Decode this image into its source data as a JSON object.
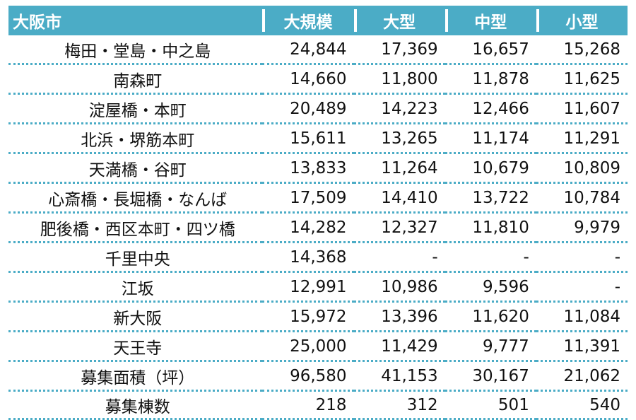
{
  "header": {
    "city": "大阪市",
    "columns": [
      "大規模",
      "大型",
      "中型",
      "小型"
    ]
  },
  "rows": [
    {
      "name": "梅田・堂島・中之島",
      "values": [
        "24,844",
        "17,369",
        "16,657",
        "15,268"
      ]
    },
    {
      "name": "南森町",
      "values": [
        "14,660",
        "11,800",
        "11,878",
        "11,625"
      ]
    },
    {
      "name": "淀屋橋・本町",
      "values": [
        "20,489",
        "14,223",
        "12,466",
        "11,607"
      ]
    },
    {
      "name": "北浜・堺筋本町",
      "values": [
        "15,611",
        "13,265",
        "11,174",
        "11,291"
      ]
    },
    {
      "name": "天満橋・谷町",
      "values": [
        "13,833",
        "11,264",
        "10,679",
        "10,809"
      ]
    },
    {
      "name": "心斎橋・長堀橋・なんば",
      "values": [
        "17,509",
        "14,410",
        "13,722",
        "10,784"
      ]
    },
    {
      "name": "肥後橋・西区本町・四ツ橋",
      "values": [
        "14,282",
        "12,327",
        "11,810",
        "9,979"
      ]
    },
    {
      "name": "千里中央",
      "values": [
        "14,368",
        "-",
        "-",
        "-"
      ]
    },
    {
      "name": "江坂",
      "values": [
        "12,991",
        "10,986",
        "9,596",
        "-"
      ]
    },
    {
      "name": "新大阪",
      "values": [
        "15,972",
        "13,396",
        "11,620",
        "11,084"
      ]
    },
    {
      "name": "天王寺",
      "values": [
        "25,000",
        "11,429",
        "9,777",
        "11,391"
      ]
    },
    {
      "name": "募集面積（坪）",
      "values": [
        "96,580",
        "41,153",
        "30,167",
        "21,062"
      ]
    },
    {
      "name": "募集棟数",
      "values": [
        "218",
        "312",
        "501",
        "540"
      ]
    }
  ]
}
